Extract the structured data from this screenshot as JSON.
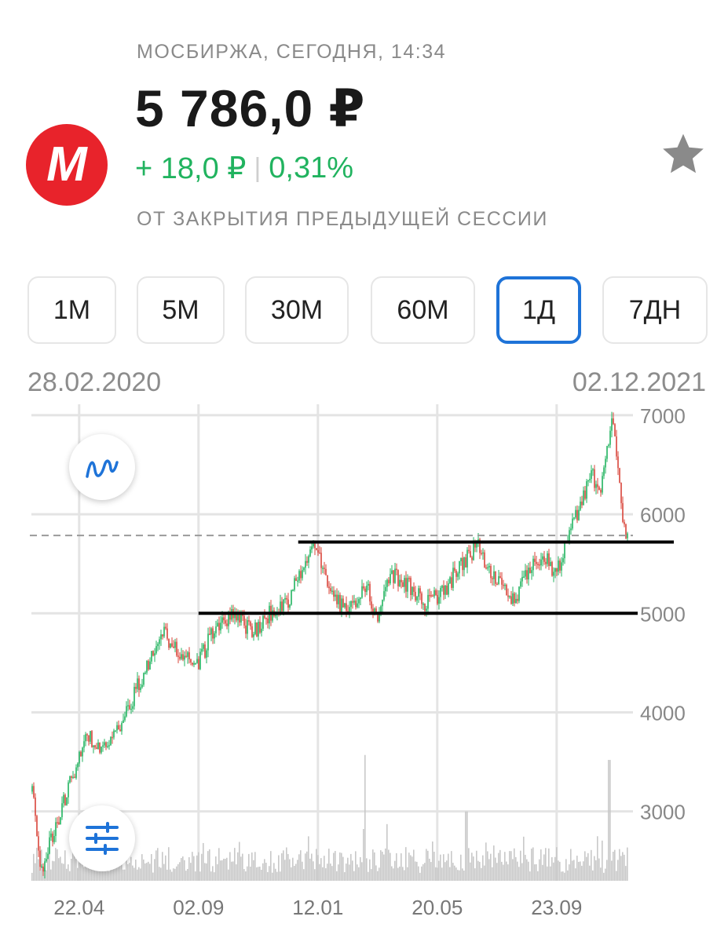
{
  "header": {
    "exchange_time": "МОСБИРЖА, СЕГОДНЯ, 14:34",
    "price": "5 786,0 ₽",
    "change_abs": "+ 18,0 ₽",
    "change_sep": "|",
    "change_pct": "0,31%",
    "subtitle": "ОТ ЗАКРЫТИЯ ПРЕДЫДУЩЕЙ СЕССИИ",
    "logo_letter": "M"
  },
  "colors": {
    "logo": "#e8232b",
    "positive": "#21b35f",
    "negative": "#d9443a",
    "accent": "#1e73d8",
    "favorite": "#8a8a8a"
  },
  "icons": {
    "favorite": "star-icon",
    "chart_type": "wave-line-icon",
    "settings": "sliders-icon"
  },
  "tabs": [
    {
      "label": "1М",
      "active": false
    },
    {
      "label": "5М",
      "active": false
    },
    {
      "label": "30М",
      "active": false
    },
    {
      "label": "60М",
      "active": false
    },
    {
      "label": "1Д",
      "active": true
    },
    {
      "label": "7ДН",
      "active": false
    }
  ],
  "range": {
    "start": "28.02.2020",
    "end": "02.12.2021"
  },
  "chart_data": {
    "type": "candlestick",
    "ylim": [
      2300,
      7150
    ],
    "y_ticks": [
      3000,
      4000,
      5000,
      6000,
      7000
    ],
    "x_ticks": [
      "22.04",
      "02.09",
      "12.01",
      "20.05",
      "23.09"
    ],
    "grid": true,
    "last_price": 5786,
    "support_lines": [
      5000,
      5720
    ],
    "price_path": [
      [
        0,
        3200
      ],
      [
        0.015,
        2400
      ],
      [
        0.03,
        2700
      ],
      [
        0.06,
        3200
      ],
      [
        0.09,
        3800
      ],
      [
        0.12,
        3600
      ],
      [
        0.15,
        3900
      ],
      [
        0.18,
        4300
      ],
      [
        0.22,
        4800
      ],
      [
        0.25,
        4600
      ],
      [
        0.28,
        4500
      ],
      [
        0.31,
        4900
      ],
      [
        0.34,
        5000
      ],
      [
        0.37,
        4800
      ],
      [
        0.4,
        5000
      ],
      [
        0.43,
        5100
      ],
      [
        0.455,
        5500
      ],
      [
        0.475,
        5720
      ],
      [
        0.5,
        5200
      ],
      [
        0.53,
        5000
      ],
      [
        0.56,
        5300
      ],
      [
        0.58,
        4950
      ],
      [
        0.6,
        5400
      ],
      [
        0.63,
        5300
      ],
      [
        0.66,
        5100
      ],
      [
        0.69,
        5200
      ],
      [
        0.72,
        5500
      ],
      [
        0.75,
        5680
      ],
      [
        0.77,
        5400
      ],
      [
        0.79,
        5300
      ],
      [
        0.81,
        5100
      ],
      [
        0.83,
        5400
      ],
      [
        0.86,
        5600
      ],
      [
        0.88,
        5400
      ],
      [
        0.9,
        5750
      ],
      [
        0.92,
        6100
      ],
      [
        0.94,
        6400
      ],
      [
        0.955,
        6200
      ],
      [
        0.965,
        6700
      ],
      [
        0.975,
        6950
      ],
      [
        0.985,
        6500
      ],
      [
        0.993,
        5900
      ],
      [
        1.0,
        5786
      ]
    ],
    "volume_spikes": [
      [
        0.56,
        3570
      ],
      [
        0.73,
        3000
      ],
      [
        0.97,
        3520
      ]
    ]
  }
}
